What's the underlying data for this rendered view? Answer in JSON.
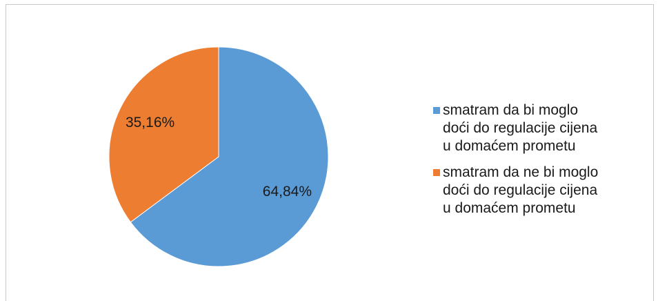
{
  "chart_data": {
    "type": "pie",
    "slices": [
      {
        "name": "smatram da bi moglo\ndoći do regulacije cijena\nu domaćem prometu",
        "value": 64.84,
        "label": "64,84%",
        "color": "#5b9bd5"
      },
      {
        "name": "smatram da ne bi moglo\ndoći do regulacije cijena\nu domaćem prometu",
        "value": 35.16,
        "label": "35,16%",
        "color": "#ed7d31"
      }
    ],
    "legend_placement": "right"
  }
}
